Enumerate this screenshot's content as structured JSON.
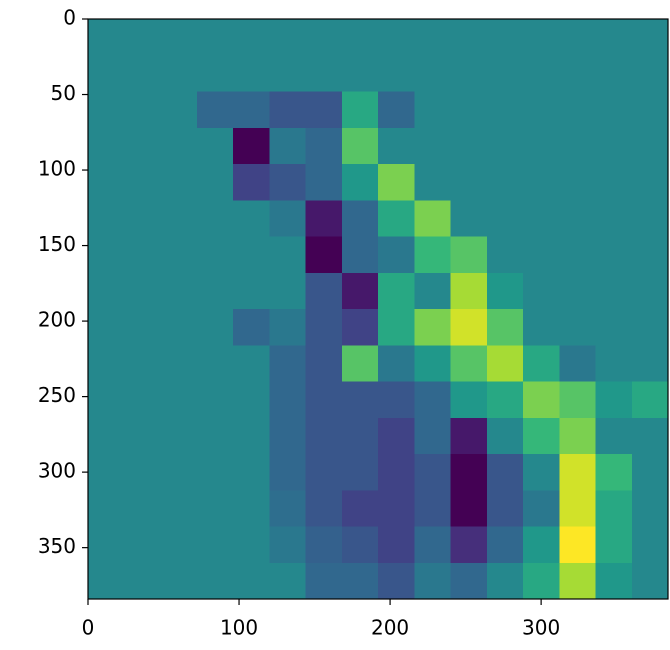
{
  "chart_data": {
    "type": "heatmap",
    "colormap": "viridis",
    "xlim": [
      0,
      384
    ],
    "ylim": [
      384,
      0
    ],
    "xticks": [
      0,
      100,
      200,
      300
    ],
    "yticks": [
      0,
      50,
      100,
      150,
      200,
      250,
      300,
      350
    ],
    "z": [
      [
        0.5,
        0.5,
        0.5,
        0.5,
        0.5,
        0.5,
        0.5,
        0.5,
        0.5,
        0.5,
        0.5,
        0.5,
        0.5,
        0.5,
        0.5,
        0.5
      ],
      [
        0.5,
        0.5,
        0.5,
        0.5,
        0.5,
        0.5,
        0.5,
        0.5,
        0.5,
        0.5,
        0.5,
        0.5,
        0.5,
        0.5,
        0.5,
        0.5
      ],
      [
        0.5,
        0.5,
        0.5,
        0.4,
        0.4,
        0.35,
        0.35,
        0.6,
        0.4,
        0.5,
        0.5,
        0.5,
        0.5,
        0.5,
        0.5,
        0.5
      ],
      [
        0.5,
        0.5,
        0.5,
        0.5,
        0.15,
        0.45,
        0.4,
        0.7,
        0.5,
        0.5,
        0.5,
        0.5,
        0.5,
        0.5,
        0.5,
        0.5
      ],
      [
        0.5,
        0.5,
        0.5,
        0.5,
        0.3,
        0.35,
        0.4,
        0.55,
        0.75,
        0.5,
        0.5,
        0.5,
        0.5,
        0.5,
        0.5,
        0.5
      ],
      [
        0.5,
        0.5,
        0.5,
        0.5,
        0.5,
        0.45,
        0.2,
        0.4,
        0.6,
        0.75,
        0.5,
        0.5,
        0.5,
        0.5,
        0.5,
        0.5
      ],
      [
        0.5,
        0.5,
        0.5,
        0.5,
        0.5,
        0.5,
        0.15,
        0.4,
        0.45,
        0.65,
        0.7,
        0.5,
        0.5,
        0.5,
        0.5,
        0.5
      ],
      [
        0.5,
        0.5,
        0.5,
        0.5,
        0.5,
        0.5,
        0.35,
        0.2,
        0.6,
        0.5,
        0.8,
        0.55,
        0.5,
        0.5,
        0.5,
        0.5
      ],
      [
        0.5,
        0.5,
        0.5,
        0.5,
        0.4,
        0.45,
        0.35,
        0.3,
        0.6,
        0.75,
        0.85,
        0.7,
        0.5,
        0.5,
        0.5,
        0.5
      ],
      [
        0.5,
        0.5,
        0.5,
        0.5,
        0.5,
        0.4,
        0.35,
        0.7,
        0.45,
        0.55,
        0.7,
        0.8,
        0.6,
        0.45,
        0.5,
        0.5
      ],
      [
        0.5,
        0.5,
        0.5,
        0.5,
        0.5,
        0.4,
        0.35,
        0.35,
        0.35,
        0.4,
        0.55,
        0.6,
        0.75,
        0.7,
        0.55,
        0.6
      ],
      [
        0.5,
        0.5,
        0.5,
        0.5,
        0.5,
        0.4,
        0.35,
        0.35,
        0.3,
        0.4,
        0.2,
        0.5,
        0.65,
        0.75,
        0.5,
        0.5
      ],
      [
        0.5,
        0.5,
        0.5,
        0.5,
        0.5,
        0.4,
        0.35,
        0.35,
        0.3,
        0.35,
        0.15,
        0.35,
        0.5,
        0.85,
        0.65,
        0.5
      ],
      [
        0.5,
        0.5,
        0.5,
        0.5,
        0.5,
        0.42,
        0.35,
        0.3,
        0.3,
        0.35,
        0.15,
        0.35,
        0.45,
        0.85,
        0.6,
        0.5
      ],
      [
        0.5,
        0.5,
        0.5,
        0.5,
        0.5,
        0.45,
        0.38,
        0.35,
        0.3,
        0.4,
        0.25,
        0.4,
        0.55,
        0.9,
        0.6,
        0.5
      ],
      [
        0.5,
        0.5,
        0.5,
        0.5,
        0.5,
        0.5,
        0.4,
        0.4,
        0.35,
        0.45,
        0.4,
        0.5,
        0.6,
        0.8,
        0.55,
        0.5
      ]
    ]
  }
}
